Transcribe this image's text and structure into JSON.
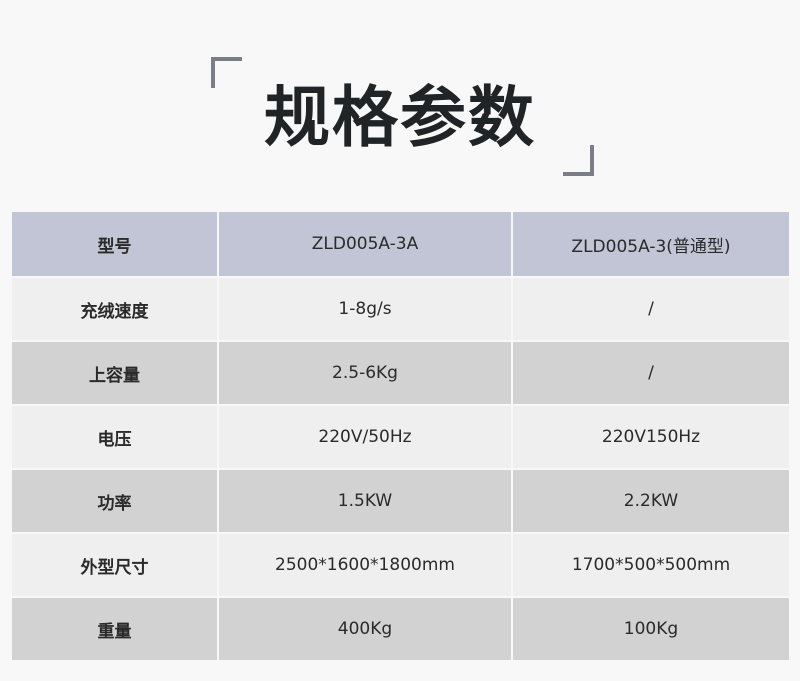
{
  "title": "规格参数",
  "colors": {
    "header_bg": "#c2c5d5",
    "row_light": "#efefef",
    "row_dark": "#d2d2d2",
    "bracket": "#7b7e85"
  },
  "table": {
    "header": [
      "型号",
      "ZLD005A-3A",
      "ZLD005A-3(普通型)"
    ],
    "rows": [
      [
        "充绒速度",
        "1-8g/s",
        "/"
      ],
      [
        "上容量",
        "2.5-6Kg",
        "/"
      ],
      [
        "电压",
        "220V/50Hz",
        "220V150Hz"
      ],
      [
        "功率",
        "1.5KW",
        "2.2KW"
      ],
      [
        "外型尺寸",
        "2500*1600*1800mm",
        "1700*500*500mm"
      ],
      [
        "重量",
        "400Kg",
        "100Kg"
      ]
    ]
  }
}
